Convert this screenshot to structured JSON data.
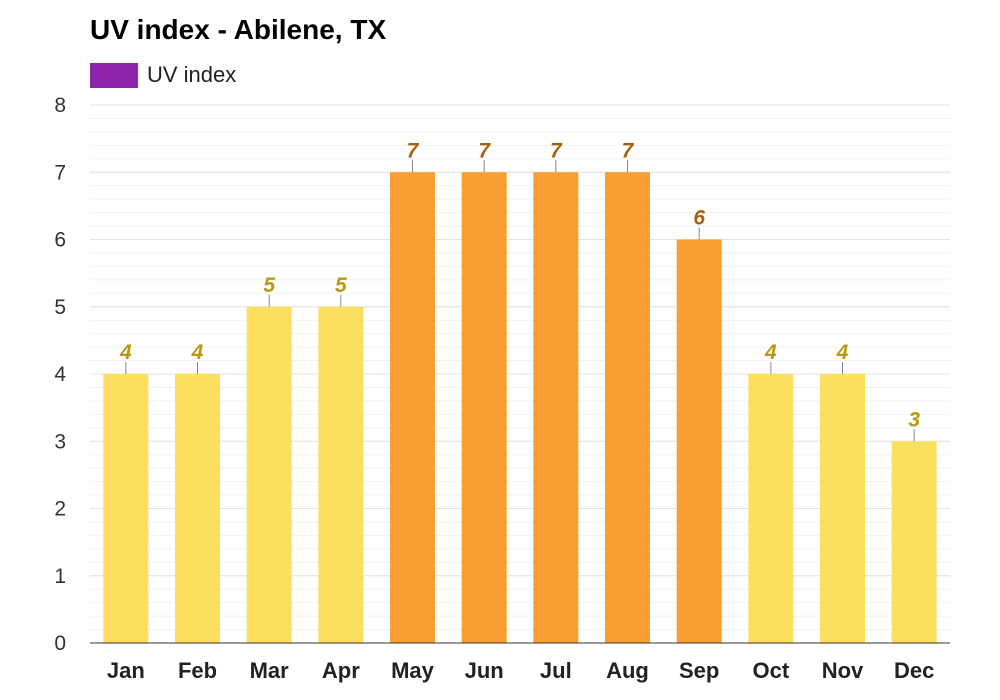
{
  "chart_data": {
    "type": "bar",
    "title": "UV index - Abilene, TX",
    "legend": [
      {
        "name": "UV index",
        "color": "#8e24aa"
      }
    ],
    "categories": [
      "Jan",
      "Feb",
      "Mar",
      "Apr",
      "May",
      "Jun",
      "Jul",
      "Aug",
      "Sep",
      "Oct",
      "Nov",
      "Dec"
    ],
    "series": [
      {
        "name": "UV index",
        "values": [
          4,
          4,
          5,
          5,
          7,
          7,
          7,
          7,
          6,
          4,
          4,
          3
        ]
      }
    ],
    "ylim": [
      0,
      8
    ],
    "yticks": [
      0,
      1,
      2,
      3,
      4,
      5,
      6,
      7,
      8
    ],
    "grid": true,
    "legend_position": "top-left",
    "colors": {
      "low_bar": "#fcdf5e",
      "high_bar": "#f99f32",
      "low_label": "#b89a12",
      "high_label": "#a9600c",
      "grid": "#e3e3e3",
      "axis": "#333333"
    },
    "high_threshold": 6
  }
}
